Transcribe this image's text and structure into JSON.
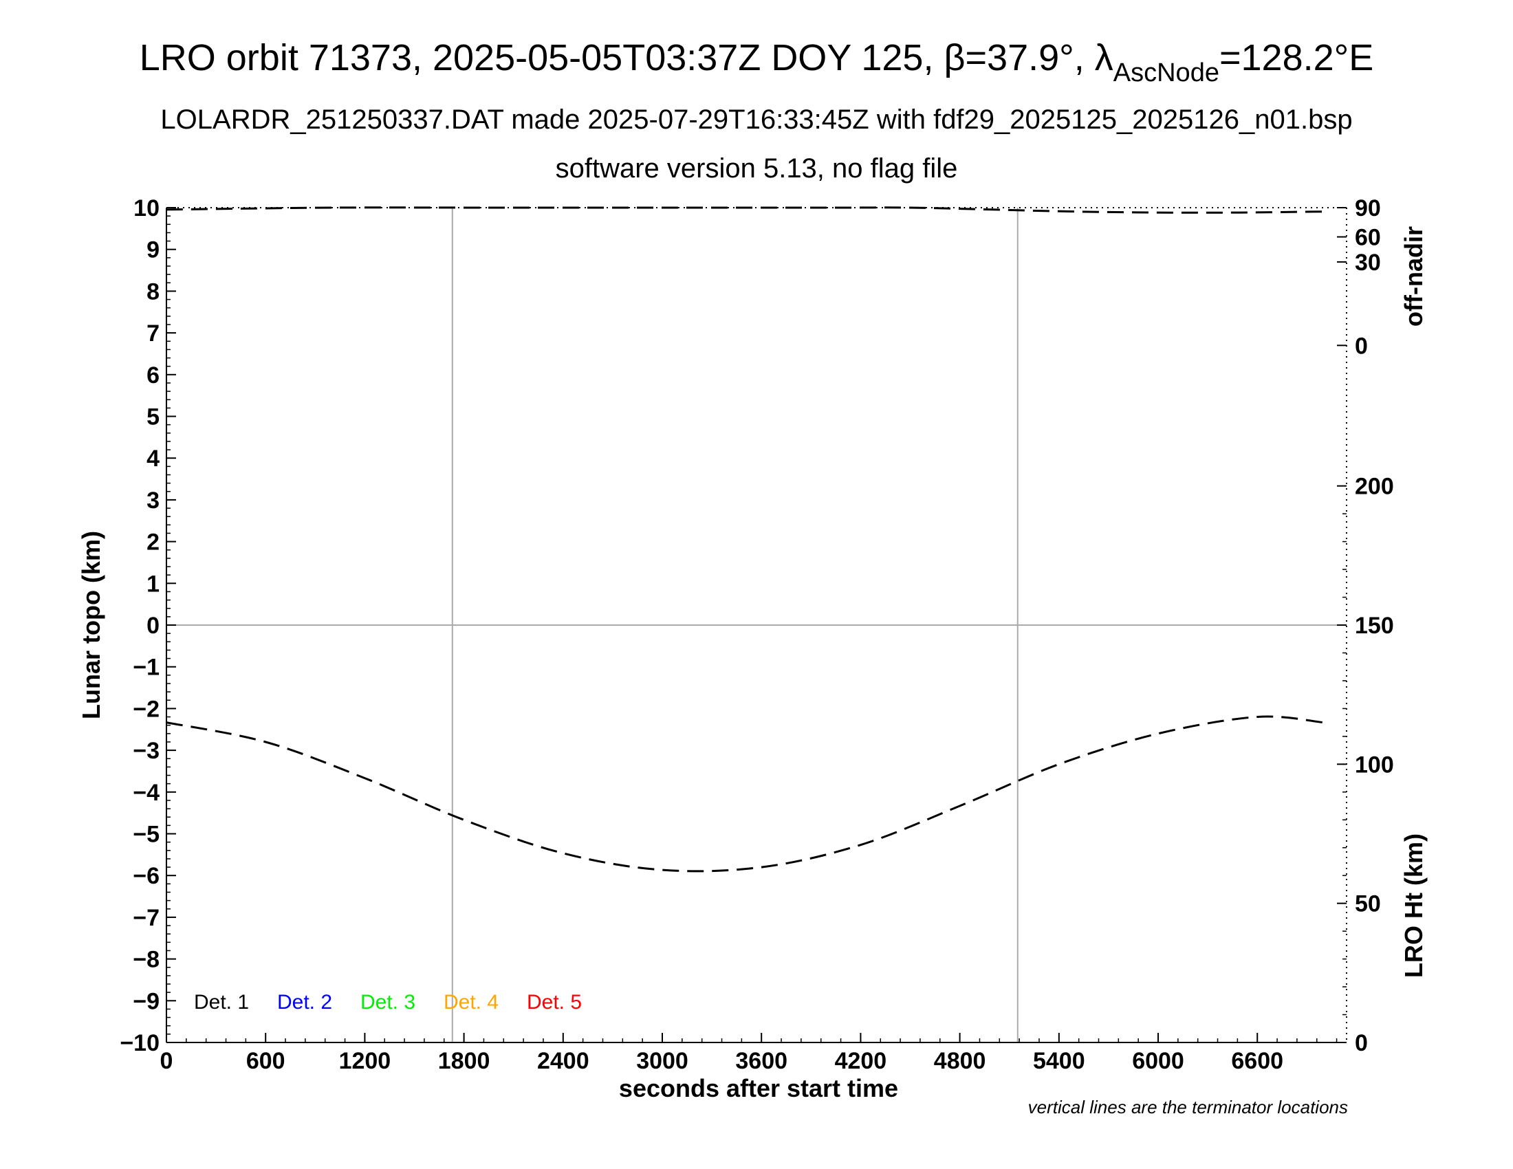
{
  "title": {
    "main": "LRO orbit 71373, 2025-05-05T03:37Z DOY 125, β=37.9°, λ",
    "sub": "AscNode",
    "tail": "=128.2°E"
  },
  "subtitle1": "LOLARDR_251250337.DAT made 2025-07-29T16:33:45Z with fdf29_2025125_2025126_n01.bsp",
  "subtitle2": "software version 5.13, no flag file",
  "note": "vertical lines are the terminator locations",
  "chart_data": {
    "type": "line",
    "xlabel": "seconds after start time",
    "xlim": [
      0,
      7140
    ],
    "x_ticks": [
      0,
      600,
      1200,
      1800,
      2400,
      3000,
      3600,
      4200,
      4800,
      5400,
      6000,
      6600
    ],
    "grid": false,
    "left_axis": {
      "label": "Lunar topo (km)",
      "ylim": [
        -10,
        10
      ],
      "ticks": [
        10,
        9,
        8,
        7,
        6,
        5,
        4,
        3,
        2,
        1,
        0,
        -1,
        -2,
        -3,
        -4,
        -5,
        -6,
        -7,
        -8,
        -9,
        -10
      ],
      "tick_labels": [
        "10",
        "9",
        "8",
        "7",
        "6",
        "5",
        "4",
        "3",
        "2",
        "1",
        "0",
        "−1",
        "−2",
        "−3",
        "−4",
        "−5",
        "−6",
        "−7",
        "−8",
        "−9",
        "−10"
      ]
    },
    "right_axis_top": {
      "label": "off-nadir",
      "ticks": [
        {
          "label": "90",
          "topo": 10
        },
        {
          "label": "60",
          "topo": 9.3
        },
        {
          "label": "30",
          "topo": 8.7
        },
        {
          "label": "0",
          "topo": 6.7
        }
      ]
    },
    "right_axis_bottom": {
      "label": "LRO Ht (km)",
      "ylim": [
        0,
        300
      ],
      "ticks": [
        0,
        50,
        100,
        150,
        200
      ]
    },
    "terminator_lines_x": [
      1730,
      5150
    ],
    "zero_line_topo": 0,
    "legend": {
      "placement": "bottom-left",
      "entries": [
        {
          "label": "Det. 1",
          "color": "#000000"
        },
        {
          "label": "Det. 2",
          "color": "#0000ff"
        },
        {
          "label": "Det. 3",
          "color": "#00ee00"
        },
        {
          "label": "Det. 4",
          "color": "#ffa500"
        },
        {
          "label": "Det. 5",
          "color": "#ff0000"
        }
      ]
    },
    "series": [
      {
        "role": "lro-height",
        "axis": "right_axis_bottom",
        "style": "dashed",
        "x": [
          0,
          600,
          1200,
          1800,
          2400,
          3000,
          3600,
          4200,
          4800,
          5400,
          6000,
          6600,
          7000
        ],
        "values": [
          115,
          108,
          95,
          80,
          68,
          62,
          63,
          71,
          85,
          100,
          111,
          117,
          115
        ]
      },
      {
        "role": "off-nadir",
        "axis": "right_axis_top",
        "style": "dashed",
        "x": [
          0,
          1000,
          2000,
          3000,
          4000,
          4500,
          5000,
          5500,
          6000,
          6500,
          7000
        ],
        "values": [
          88,
          90,
          90,
          90,
          90,
          90,
          88,
          86,
          85,
          85,
          86
        ]
      }
    ]
  }
}
